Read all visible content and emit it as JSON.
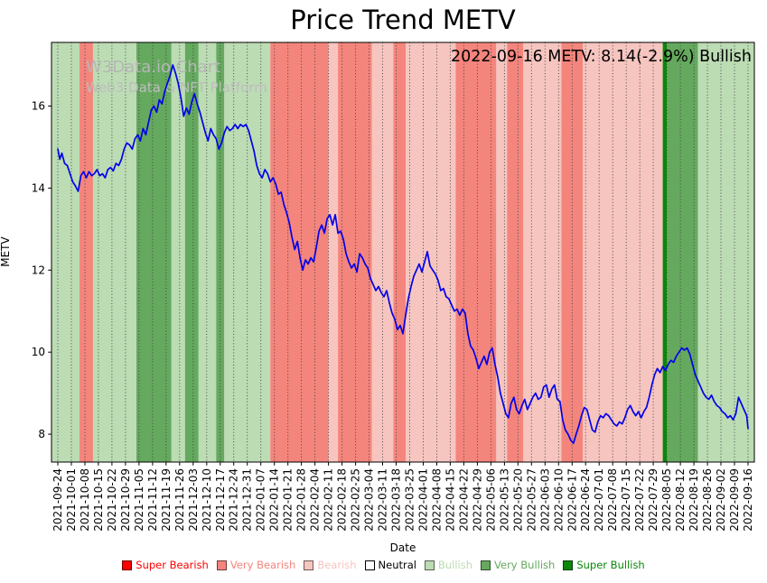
{
  "watermark": {
    "line1": "W3Data.io Chart",
    "line2": "Web3 Data & NFT Platform"
  },
  "chart_data": {
    "type": "line",
    "title": "Price Trend METV",
    "annotation": "2022-09-16 METV: 8.14(-2.9%) Bullish",
    "xlabel": "Date",
    "ylabel": "METV",
    "ylim": [
      7.32,
      17.55
    ],
    "yticks": [
      8,
      10,
      12,
      14,
      16
    ],
    "grid": "vertical-dotted",
    "legend_position": "bottom",
    "line_color": "#0202e8",
    "x_unit": "weeks since 2021-09-24",
    "categories": [
      "2021-09-24",
      "2021-10-01",
      "2021-10-08",
      "2021-10-15",
      "2021-10-22",
      "2021-10-29",
      "2021-11-05",
      "2021-11-12",
      "2021-11-19",
      "2021-11-26",
      "2021-12-03",
      "2021-12-10",
      "2021-12-17",
      "2021-12-24",
      "2021-12-31",
      "2022-01-07",
      "2022-01-14",
      "2022-01-21",
      "2022-01-28",
      "2022-02-04",
      "2022-02-11",
      "2022-02-18",
      "2022-02-25",
      "2022-03-04",
      "2022-03-11",
      "2022-03-18",
      "2022-03-25",
      "2022-04-01",
      "2022-04-08",
      "2022-04-15",
      "2022-04-22",
      "2022-04-29",
      "2022-05-06",
      "2022-05-13",
      "2022-05-20",
      "2022-05-27",
      "2022-06-03",
      "2022-06-10",
      "2022-06-17",
      "2022-06-24",
      "2022-07-01",
      "2022-07-08",
      "2022-07-15",
      "2022-07-22",
      "2022-07-29",
      "2022-08-05",
      "2022-08-12",
      "2022-08-19",
      "2022-08-26",
      "2022-09-02",
      "2022-09-09",
      "2022-09-16"
    ],
    "sentiment_levels": {
      "Super Bearish": "#ff0000",
      "Very Bearish": "#f4857d",
      "Bearish": "#f6c5c0",
      "Neutral": "#ffffff",
      "Bullish": "#bcdcb4",
      "Very Bullish": "#65a95f",
      "Super Bullish": "#0a870a"
    },
    "legend": [
      "Super Bearish",
      "Very Bearish",
      "Bearish",
      "Neutral",
      "Bullish",
      "Very Bullish",
      "Super Bullish"
    ],
    "bands": [
      {
        "start": -0.45,
        "end": 1.6,
        "level": "Bullish"
      },
      {
        "start": 1.6,
        "end": 2.6,
        "level": "Very Bearish"
      },
      {
        "start": 2.6,
        "end": 5.8,
        "level": "Bullish"
      },
      {
        "start": 5.8,
        "end": 8.4,
        "level": "Very Bullish"
      },
      {
        "start": 8.4,
        "end": 9.4,
        "level": "Bullish"
      },
      {
        "start": 9.4,
        "end": 10.4,
        "level": "Very Bullish"
      },
      {
        "start": 10.4,
        "end": 11.7,
        "level": "Bullish"
      },
      {
        "start": 11.7,
        "end": 12.3,
        "level": "Very Bullish"
      },
      {
        "start": 12.3,
        "end": 15.7,
        "level": "Bullish"
      },
      {
        "start": 15.7,
        "end": 20.0,
        "level": "Very Bearish"
      },
      {
        "start": 20.0,
        "end": 20.7,
        "level": "Bearish"
      },
      {
        "start": 20.7,
        "end": 23.2,
        "level": "Very Bearish"
      },
      {
        "start": 23.2,
        "end": 24.8,
        "level": "Bearish"
      },
      {
        "start": 24.8,
        "end": 25.7,
        "level": "Very Bearish"
      },
      {
        "start": 25.7,
        "end": 29.4,
        "level": "Bearish"
      },
      {
        "start": 29.4,
        "end": 32.4,
        "level": "Very Bearish"
      },
      {
        "start": 32.4,
        "end": 33.2,
        "level": "Bearish"
      },
      {
        "start": 33.2,
        "end": 34.4,
        "level": "Very Bearish"
      },
      {
        "start": 34.4,
        "end": 37.2,
        "level": "Bearish"
      },
      {
        "start": 37.2,
        "end": 38.8,
        "level": "Very Bearish"
      },
      {
        "start": 38.8,
        "end": 44.7,
        "level": "Bearish"
      },
      {
        "start": 44.7,
        "end": 45.0,
        "level": "Super Bullish"
      },
      {
        "start": 45.0,
        "end": 47.3,
        "level": "Very Bullish"
      },
      {
        "start": 47.3,
        "end": 51.45,
        "level": "Bullish"
      }
    ],
    "series": [
      {
        "name": "METV",
        "points": [
          [
            0.0,
            14.95
          ],
          [
            0.15,
            14.7
          ],
          [
            0.3,
            14.85
          ],
          [
            0.5,
            14.6
          ],
          [
            0.7,
            14.55
          ],
          [
            0.9,
            14.35
          ],
          [
            1.1,
            14.15
          ],
          [
            1.3,
            14.05
          ],
          [
            1.5,
            13.92
          ],
          [
            1.7,
            14.3
          ],
          [
            1.9,
            14.4
          ],
          [
            2.1,
            14.25
          ],
          [
            2.3,
            14.4
          ],
          [
            2.5,
            14.3
          ],
          [
            2.7,
            14.35
          ],
          [
            2.9,
            14.45
          ],
          [
            3.1,
            14.3
          ],
          [
            3.3,
            14.35
          ],
          [
            3.5,
            14.25
          ],
          [
            3.7,
            14.45
          ],
          [
            3.9,
            14.5
          ],
          [
            4.1,
            14.42
          ],
          [
            4.3,
            14.6
          ],
          [
            4.5,
            14.55
          ],
          [
            4.7,
            14.7
          ],
          [
            4.9,
            14.95
          ],
          [
            5.1,
            15.1
          ],
          [
            5.3,
            15.05
          ],
          [
            5.5,
            14.95
          ],
          [
            5.7,
            15.2
          ],
          [
            5.9,
            15.3
          ],
          [
            6.1,
            15.15
          ],
          [
            6.3,
            15.45
          ],
          [
            6.5,
            15.3
          ],
          [
            6.7,
            15.6
          ],
          [
            6.9,
            15.9
          ],
          [
            7.1,
            16.0
          ],
          [
            7.3,
            15.85
          ],
          [
            7.5,
            16.15
          ],
          [
            7.7,
            16.05
          ],
          [
            7.9,
            16.35
          ],
          [
            8.1,
            16.55
          ],
          [
            8.3,
            16.75
          ],
          [
            8.5,
            17.0
          ],
          [
            8.7,
            16.8
          ],
          [
            8.9,
            16.55
          ],
          [
            9.1,
            16.2
          ],
          [
            9.3,
            15.75
          ],
          [
            9.5,
            15.95
          ],
          [
            9.7,
            15.8
          ],
          [
            9.9,
            16.1
          ],
          [
            10.1,
            16.3
          ],
          [
            10.3,
            16.05
          ],
          [
            10.5,
            15.85
          ],
          [
            10.7,
            15.6
          ],
          [
            10.9,
            15.35
          ],
          [
            11.1,
            15.15
          ],
          [
            11.3,
            15.45
          ],
          [
            11.5,
            15.3
          ],
          [
            11.7,
            15.2
          ],
          [
            11.9,
            14.95
          ],
          [
            12.1,
            15.1
          ],
          [
            12.3,
            15.35
          ],
          [
            12.5,
            15.5
          ],
          [
            12.7,
            15.4
          ],
          [
            12.9,
            15.45
          ],
          [
            13.1,
            15.55
          ],
          [
            13.3,
            15.45
          ],
          [
            13.5,
            15.55
          ],
          [
            13.7,
            15.5
          ],
          [
            13.9,
            15.55
          ],
          [
            14.1,
            15.4
          ],
          [
            14.3,
            15.15
          ],
          [
            14.5,
            14.9
          ],
          [
            14.7,
            14.55
          ],
          [
            14.9,
            14.35
          ],
          [
            15.1,
            14.25
          ],
          [
            15.3,
            14.45
          ],
          [
            15.5,
            14.35
          ],
          [
            15.7,
            14.15
          ],
          [
            15.9,
            14.25
          ],
          [
            16.1,
            14.1
          ],
          [
            16.3,
            13.85
          ],
          [
            16.5,
            13.9
          ],
          [
            16.7,
            13.6
          ],
          [
            16.9,
            13.4
          ],
          [
            17.1,
            13.15
          ],
          [
            17.3,
            12.8
          ],
          [
            17.5,
            12.5
          ],
          [
            17.7,
            12.7
          ],
          [
            17.9,
            12.3
          ],
          [
            18.1,
            12.0
          ],
          [
            18.3,
            12.25
          ],
          [
            18.5,
            12.15
          ],
          [
            18.7,
            12.3
          ],
          [
            18.9,
            12.2
          ],
          [
            19.1,
            12.55
          ],
          [
            19.3,
            12.95
          ],
          [
            19.5,
            13.1
          ],
          [
            19.7,
            12.9
          ],
          [
            19.9,
            13.25
          ],
          [
            20.1,
            13.35
          ],
          [
            20.3,
            13.1
          ],
          [
            20.5,
            13.35
          ],
          [
            20.7,
            12.9
          ],
          [
            20.9,
            12.95
          ],
          [
            21.1,
            12.75
          ],
          [
            21.3,
            12.4
          ],
          [
            21.5,
            12.2
          ],
          [
            21.7,
            12.05
          ],
          [
            21.9,
            12.15
          ],
          [
            22.1,
            11.95
          ],
          [
            22.3,
            12.4
          ],
          [
            22.5,
            12.3
          ],
          [
            22.7,
            12.15
          ],
          [
            22.9,
            12.05
          ],
          [
            23.1,
            11.8
          ],
          [
            23.3,
            11.65
          ],
          [
            23.5,
            11.5
          ],
          [
            23.7,
            11.6
          ],
          [
            23.9,
            11.45
          ],
          [
            24.1,
            11.35
          ],
          [
            24.3,
            11.5
          ],
          [
            24.5,
            11.2
          ],
          [
            24.7,
            10.95
          ],
          [
            24.9,
            10.8
          ],
          [
            25.1,
            10.55
          ],
          [
            25.3,
            10.65
          ],
          [
            25.5,
            10.45
          ],
          [
            25.7,
            10.9
          ],
          [
            25.9,
            11.3
          ],
          [
            26.1,
            11.6
          ],
          [
            26.3,
            11.85
          ],
          [
            26.5,
            12.0
          ],
          [
            26.7,
            12.15
          ],
          [
            26.9,
            11.95
          ],
          [
            27.1,
            12.2
          ],
          [
            27.3,
            12.45
          ],
          [
            27.5,
            12.1
          ],
          [
            27.7,
            12.0
          ],
          [
            27.9,
            11.9
          ],
          [
            28.1,
            11.75
          ],
          [
            28.3,
            11.5
          ],
          [
            28.5,
            11.55
          ],
          [
            28.7,
            11.35
          ],
          [
            28.9,
            11.3
          ],
          [
            29.1,
            11.15
          ],
          [
            29.3,
            11.0
          ],
          [
            29.5,
            11.05
          ],
          [
            29.7,
            10.9
          ],
          [
            29.9,
            11.05
          ],
          [
            30.1,
            10.95
          ],
          [
            30.3,
            10.45
          ],
          [
            30.5,
            10.15
          ],
          [
            30.7,
            10.05
          ],
          [
            30.9,
            9.85
          ],
          [
            31.1,
            9.6
          ],
          [
            31.3,
            9.75
          ],
          [
            31.5,
            9.9
          ],
          [
            31.7,
            9.7
          ],
          [
            31.9,
            10.0
          ],
          [
            32.1,
            10.1
          ],
          [
            32.3,
            9.7
          ],
          [
            32.5,
            9.4
          ],
          [
            32.7,
            9.0
          ],
          [
            32.9,
            8.75
          ],
          [
            33.1,
            8.5
          ],
          [
            33.3,
            8.4
          ],
          [
            33.5,
            8.75
          ],
          [
            33.7,
            8.9
          ],
          [
            33.9,
            8.6
          ],
          [
            34.1,
            8.5
          ],
          [
            34.3,
            8.7
          ],
          [
            34.5,
            8.85
          ],
          [
            34.7,
            8.6
          ],
          [
            34.9,
            8.75
          ],
          [
            35.1,
            8.9
          ],
          [
            35.3,
            9.0
          ],
          [
            35.5,
            8.85
          ],
          [
            35.7,
            8.9
          ],
          [
            35.9,
            9.15
          ],
          [
            36.1,
            9.2
          ],
          [
            36.3,
            8.9
          ],
          [
            36.5,
            9.1
          ],
          [
            36.7,
            9.2
          ],
          [
            36.9,
            8.85
          ],
          [
            37.1,
            8.8
          ],
          [
            37.3,
            8.35
          ],
          [
            37.5,
            8.1
          ],
          [
            37.7,
            8.0
          ],
          [
            37.9,
            7.85
          ],
          [
            38.1,
            7.78
          ],
          [
            38.3,
            8.0
          ],
          [
            38.5,
            8.2
          ],
          [
            38.7,
            8.45
          ],
          [
            38.9,
            8.65
          ],
          [
            39.1,
            8.6
          ],
          [
            39.3,
            8.35
          ],
          [
            39.5,
            8.1
          ],
          [
            39.7,
            8.05
          ],
          [
            39.9,
            8.3
          ],
          [
            40.1,
            8.45
          ],
          [
            40.3,
            8.4
          ],
          [
            40.5,
            8.5
          ],
          [
            40.7,
            8.45
          ],
          [
            40.9,
            8.35
          ],
          [
            41.1,
            8.25
          ],
          [
            41.3,
            8.2
          ],
          [
            41.5,
            8.3
          ],
          [
            41.7,
            8.25
          ],
          [
            41.9,
            8.4
          ],
          [
            42.1,
            8.6
          ],
          [
            42.3,
            8.7
          ],
          [
            42.5,
            8.55
          ],
          [
            42.7,
            8.45
          ],
          [
            42.9,
            8.55
          ],
          [
            43.1,
            8.4
          ],
          [
            43.3,
            8.55
          ],
          [
            43.5,
            8.65
          ],
          [
            43.7,
            8.9
          ],
          [
            43.9,
            9.2
          ],
          [
            44.1,
            9.45
          ],
          [
            44.3,
            9.6
          ],
          [
            44.5,
            9.5
          ],
          [
            44.7,
            9.65
          ],
          [
            44.9,
            9.55
          ],
          [
            45.1,
            9.7
          ],
          [
            45.3,
            9.8
          ],
          [
            45.5,
            9.75
          ],
          [
            45.7,
            9.9
          ],
          [
            45.9,
            10.0
          ],
          [
            46.1,
            10.1
          ],
          [
            46.3,
            10.05
          ],
          [
            46.5,
            10.1
          ],
          [
            46.7,
            9.95
          ],
          [
            46.9,
            9.7
          ],
          [
            47.1,
            9.45
          ],
          [
            47.3,
            9.3
          ],
          [
            47.5,
            9.15
          ],
          [
            47.7,
            9.0
          ],
          [
            47.9,
            8.9
          ],
          [
            48.1,
            8.85
          ],
          [
            48.3,
            8.95
          ],
          [
            48.5,
            8.8
          ],
          [
            48.7,
            8.7
          ],
          [
            48.9,
            8.65
          ],
          [
            49.1,
            8.55
          ],
          [
            49.3,
            8.5
          ],
          [
            49.5,
            8.4
          ],
          [
            49.7,
            8.45
          ],
          [
            49.9,
            8.35
          ],
          [
            50.1,
            8.5
          ],
          [
            50.3,
            8.9
          ],
          [
            50.5,
            8.75
          ],
          [
            50.7,
            8.6
          ],
          [
            50.9,
            8.45
          ],
          [
            51.0,
            8.14
          ]
        ]
      }
    ]
  }
}
